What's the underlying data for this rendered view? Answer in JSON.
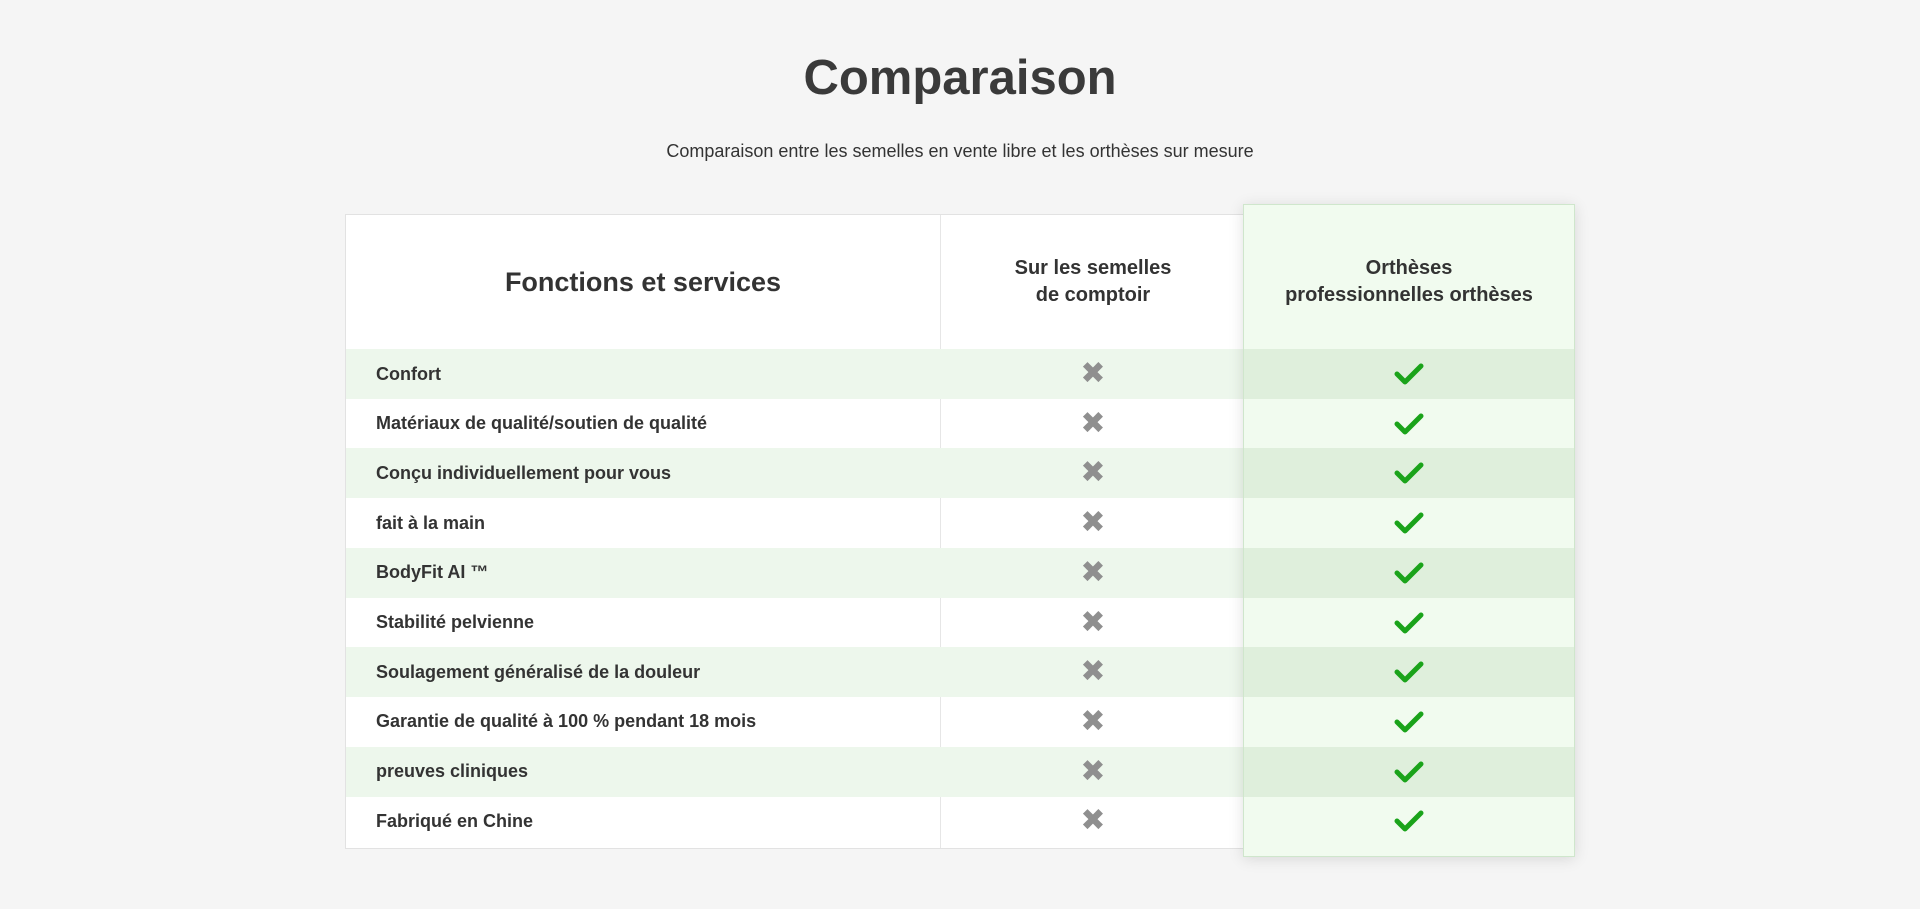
{
  "title": "Comparaison",
  "subtitle": "Comparaison entre les semelles en vente libre et les orthèses sur mesure",
  "table": {
    "headers": [
      "Fonctions et services",
      "Sur les semelles\nde comptoir",
      "Orthèses\nprofessionnelles orthèses"
    ],
    "rows": [
      {
        "feature": "Confort",
        "otc": "cross-icon",
        "pro": "check-icon"
      },
      {
        "feature": "Matériaux de qualité/soutien de qualité",
        "otc": "cross-icon",
        "pro": "check-icon"
      },
      {
        "feature": "Conçu individuellement pour vous",
        "otc": "cross-icon",
        "pro": "check-icon"
      },
      {
        "feature": "fait à la main",
        "otc": "cross-icon",
        "pro": "check-icon"
      },
      {
        "feature": "BodyFit AI ™",
        "otc": "cross-icon",
        "pro": "check-icon"
      },
      {
        "feature": "Stabilité pelvienne",
        "otc": "cross-icon",
        "pro": "check-icon"
      },
      {
        "feature": "Soulagement généralisé de la douleur",
        "otc": "cross-icon",
        "pro": "check-icon"
      },
      {
        "feature": "Garantie de qualité à 100 % pendant 18 mois",
        "otc": "cross-icon",
        "pro": "check-icon"
      },
      {
        "feature": "preuves cliniques",
        "otc": "cross-icon",
        "pro": "check-icon"
      },
      {
        "feature": "Fabriqué en Chine",
        "otc": "cross-icon",
        "pro": "check-icon"
      }
    ]
  },
  "colors": {
    "check": "#1aa31a",
    "cross": "#8f8f8f",
    "highlight_bg": "#f1fbef",
    "stripe": "#edf7ec"
  }
}
